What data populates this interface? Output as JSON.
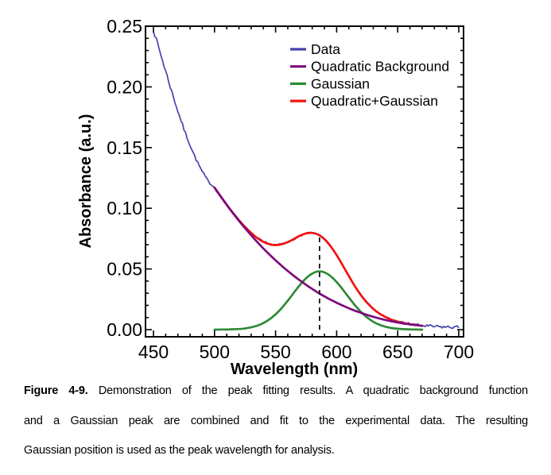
{
  "caption": {
    "label": "Figure 4-9.",
    "line1_rest": "Demonstration of the peak fitting results. A quadratic background function",
    "line2": "and a Gaussian peak are combined and fit to the experimental data. The resulting",
    "line3": "Gaussian position is used as the peak wavelength for analysis."
  },
  "chart_data": {
    "type": "line",
    "title": "",
    "xlabel": "Wavelength (nm)",
    "ylabel": "Absorbance (a.u.)",
    "xlim": [
      443.5,
      704
    ],
    "ylim": [
      -0.006,
      0.25
    ],
    "x_ticks": [
      450,
      500,
      550,
      600,
      650,
      700
    ],
    "x_minor_step": 10,
    "y_ticks": [
      0,
      0.05,
      0.1,
      0.15,
      0.2,
      0.25
    ],
    "y_tick_labels": [
      "0.00",
      "0.05",
      "0.10",
      "0.15",
      "0.20",
      "0.25"
    ],
    "y_minor_step": 0.01,
    "grid": false,
    "legend_position": "upper-right-inside",
    "frame_color": "#000000",
    "guide_line": {
      "type": "vline",
      "style": "dashed",
      "color": "#111111",
      "x": 586,
      "y_from": 0.0,
      "y_to": 0.0785
    },
    "draw_order": [
      0,
      2,
      3,
      1
    ],
    "series": [
      {
        "name": "Data",
        "color": "#4545ad",
        "style": "noisy",
        "x": [
          450,
          455,
          460,
          465,
          470,
          475,
          480,
          485,
          490,
          495,
          500,
          505,
          510,
          515,
          520,
          525,
          530,
          535,
          540,
          545,
          550,
          555,
          560,
          565,
          570,
          575,
          580,
          585,
          590,
          595,
          600,
          605,
          610,
          615,
          620,
          625,
          630,
          635,
          640,
          645,
          650,
          655,
          660,
          665,
          670,
          675,
          680,
          685,
          690,
          695,
          700
        ],
        "y": [
          0.247,
          0.23,
          0.213,
          0.196,
          0.18,
          0.165,
          0.152,
          0.14,
          0.13,
          0.122,
          0.117,
          0.1099,
          0.1029,
          0.0964,
          0.0902,
          0.0846,
          0.0797,
          0.0755,
          0.0723,
          0.0704,
          0.0697,
          0.0704,
          0.0722,
          0.0747,
          0.0774,
          0.0793,
          0.0797,
          0.0783,
          0.0746,
          0.0688,
          0.0614,
          0.0529,
          0.0441,
          0.0357,
          0.0283,
          0.0221,
          0.0171,
          0.0132,
          0.0104,
          0.0082,
          0.0066,
          0.0054,
          0.0045,
          0.0038,
          0.0032,
          0.0028,
          0.0025,
          0.0023,
          0.0021,
          0.002,
          0.002
        ]
      },
      {
        "name": "Quadratic Background",
        "color": "#7c0b7c",
        "style": "smooth",
        "x": [
          500,
          505,
          510,
          515,
          520,
          525,
          530,
          535,
          540,
          545,
          550,
          555,
          560,
          565,
          570,
          575,
          580,
          585,
          590,
          595,
          600,
          605,
          610,
          615,
          620,
          625,
          630,
          635,
          640,
          645,
          650,
          655,
          660,
          665,
          670
        ],
        "y": [
          0.117,
          0.1098,
          0.1028,
          0.0961,
          0.0897,
          0.0836,
          0.0778,
          0.0722,
          0.0669,
          0.0619,
          0.0571,
          0.0526,
          0.0483,
          0.0443,
          0.0405,
          0.0369,
          0.0335,
          0.0303,
          0.0274,
          0.0247,
          0.0222,
          0.0198,
          0.0176,
          0.0156,
          0.0138,
          0.0121,
          0.0106,
          0.0092,
          0.008,
          0.0069,
          0.0059,
          0.005,
          0.0043,
          0.0037,
          0.0032
        ]
      },
      {
        "name": "Gaussian",
        "color": "#2f8b35",
        "style": "smooth",
        "peak_center_nm": 586,
        "peak_amplitude": 0.048,
        "x": [
          500,
          505,
          510,
          515,
          520,
          525,
          530,
          535,
          540,
          545,
          550,
          555,
          560,
          565,
          570,
          575,
          580,
          585,
          590,
          595,
          600,
          605,
          610,
          615,
          620,
          625,
          630,
          635,
          640,
          645,
          650,
          655,
          660,
          665,
          670
        ],
        "y": [
          0.0,
          0.0001,
          0.0001,
          0.0003,
          0.0005,
          0.001,
          0.0019,
          0.0033,
          0.0054,
          0.0085,
          0.0126,
          0.0178,
          0.0239,
          0.0304,
          0.0369,
          0.0424,
          0.0462,
          0.048,
          0.0472,
          0.0441,
          0.0392,
          0.0331,
          0.0265,
          0.0201,
          0.0145,
          0.01,
          0.0065,
          0.004,
          0.0024,
          0.0013,
          0.0007,
          0.0004,
          0.0002,
          0.0001,
          0.0
        ]
      },
      {
        "name": "Quadratic+Gaussian",
        "color": "#f01310",
        "style": "smooth",
        "x": [
          500,
          505,
          510,
          515,
          520,
          525,
          530,
          535,
          540,
          545,
          550,
          555,
          560,
          565,
          570,
          575,
          580,
          585,
          590,
          595,
          600,
          605,
          610,
          615,
          620,
          625,
          630,
          635,
          640,
          645,
          650,
          655,
          660,
          665,
          670
        ],
        "y": [
          0.117,
          0.1099,
          0.1029,
          0.0964,
          0.0902,
          0.0846,
          0.0797,
          0.0755,
          0.0723,
          0.0704,
          0.0697,
          0.0704,
          0.0722,
          0.0747,
          0.0774,
          0.0793,
          0.0797,
          0.0783,
          0.0746,
          0.0688,
          0.0614,
          0.0529,
          0.0441,
          0.0357,
          0.0283,
          0.0221,
          0.0171,
          0.0132,
          0.0104,
          0.0082,
          0.0066,
          0.0054,
          0.0045,
          0.0038,
          0.0032
        ]
      }
    ],
    "noise_profile": {
      "seed": 7,
      "breakpoints": [
        [
          450,
          0.0018
        ],
        [
          475,
          0.0013
        ],
        [
          500,
          0.0008
        ],
        [
          560,
          0.0007
        ],
        [
          600,
          0.0006
        ],
        [
          640,
          0.0007
        ],
        [
          660,
          0.0013
        ],
        [
          700,
          0.0013
        ]
      ]
    }
  }
}
